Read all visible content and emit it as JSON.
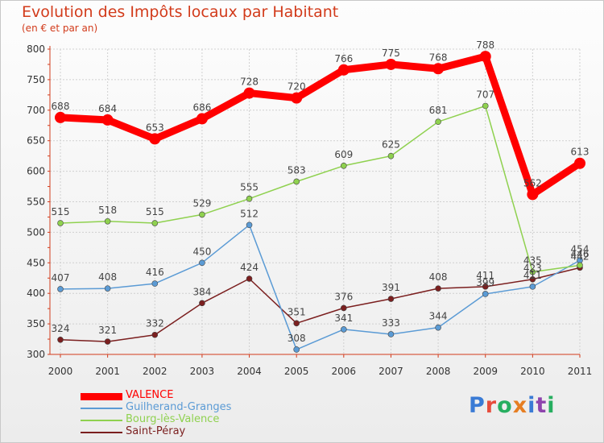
{
  "title": "Evolution des Impôts locaux par Habitant",
  "subtitle": "(en € et par an)",
  "logo": {
    "text": "Proxiti",
    "letter_colors": [
      "#3a7bd5",
      "#e74c3c",
      "#27ae60",
      "#e67e22",
      "#3a7bd5",
      "#8e44ad",
      "#27ae60"
    ]
  },
  "chart_data": {
    "type": "line",
    "x": [
      "2000",
      "2001",
      "2002",
      "2003",
      "2004",
      "2005",
      "2006",
      "2007",
      "2008",
      "2009",
      "2010",
      "2011"
    ],
    "ylim": [
      300,
      800
    ],
    "yticks": [
      300,
      350,
      400,
      450,
      500,
      550,
      600,
      650,
      700,
      750,
      800
    ],
    "grid": true,
    "legend": "bottom-left",
    "series": [
      {
        "name": "VALENCE",
        "color": "#ff0000",
        "values": [
          688,
          684,
          653,
          686,
          728,
          720,
          766,
          775,
          768,
          788,
          562,
          613
        ]
      },
      {
        "name": "Guilherand-Granges",
        "color": "#5b9bd5",
        "values": [
          407,
          408,
          416,
          450,
          512,
          308,
          341,
          333,
          344,
          399,
          411,
          454
        ]
      },
      {
        "name": "Bourg-lès-Valence",
        "color": "#8fd14f",
        "values": [
          515,
          518,
          515,
          529,
          555,
          583,
          609,
          625,
          681,
          707,
          435,
          446
        ]
      },
      {
        "name": "Saint-Péray",
        "color": "#7b1f1f",
        "values": [
          324,
          321,
          332,
          384,
          424,
          351,
          376,
          391,
          408,
          411,
          423,
          442
        ]
      }
    ]
  }
}
